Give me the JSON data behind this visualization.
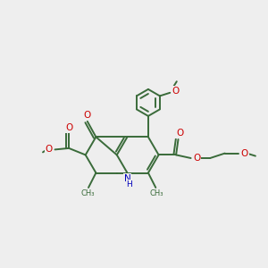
{
  "bg_color": "#EEEEEE",
  "bond_color": "#3a6b3a",
  "bond_width": 1.4,
  "atom_colors": {
    "O": "#cc0000",
    "N": "#0000bb",
    "C": "#3a6b3a"
  },
  "figsize": [
    3.0,
    3.0
  ],
  "dpi": 100,
  "xlim": [
    0,
    10
  ],
  "ylim": [
    0,
    10
  ]
}
